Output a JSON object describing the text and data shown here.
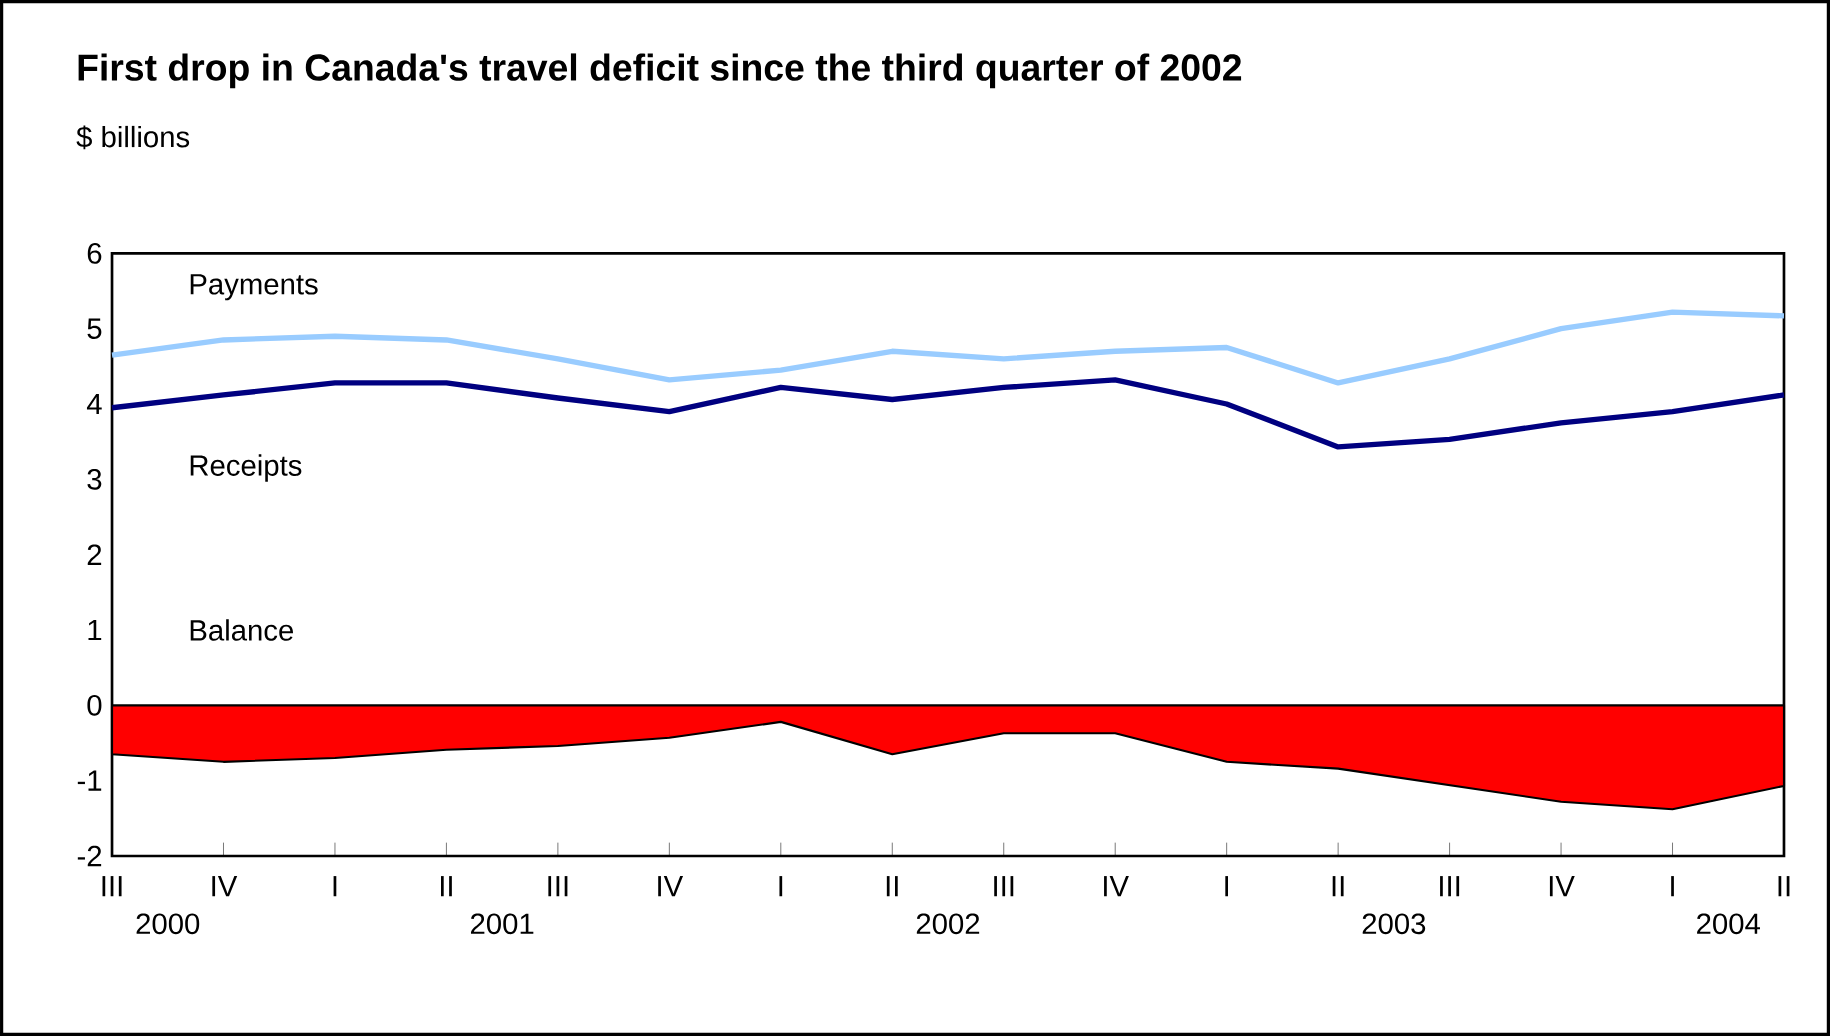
{
  "chart_data": {
    "type": "line",
    "title": "First drop in Canada's travel deficit since the third quarter of 2002",
    "subtitle": "$ billions",
    "categories": [
      "III",
      "IV",
      "I",
      "II",
      "III",
      "IV",
      "I",
      "II",
      "III",
      "IV",
      "I",
      "II",
      "III",
      "IV",
      "I",
      "II"
    ],
    "annotations": [
      "2000",
      "2001",
      "2002",
      "2003",
      "2004"
    ],
    "series": [
      {
        "name": "Payments",
        "color": "#99ccff",
        "values": [
          4.65,
          4.85,
          4.9,
          4.85,
          4.6,
          4.32,
          4.45,
          4.7,
          4.6,
          4.7,
          4.75,
          4.28,
          4.6,
          5.0,
          5.22,
          5.17
        ]
      },
      {
        "name": "Receipts",
        "color": "#000080",
        "values": [
          3.95,
          4.12,
          4.28,
          4.28,
          4.08,
          3.9,
          4.22,
          4.06,
          4.22,
          4.32,
          4.0,
          3.43,
          3.53,
          3.75,
          3.9,
          4.12
        ]
      },
      {
        "name": "Balance",
        "type": "area",
        "color": "#ff0000",
        "values": [
          -0.65,
          -0.75,
          -0.7,
          -0.59,
          -0.54,
          -0.43,
          -0.22,
          -0.65,
          -0.37,
          -0.37,
          -0.75,
          -0.84,
          -1.06,
          -1.28,
          -1.38,
          -1.07
        ]
      }
    ],
    "ylim": [
      -2,
      6
    ],
    "yticks": [
      -2,
      -1,
      0,
      1,
      2,
      3,
      4,
      5,
      6
    ],
    "grid": false
  }
}
